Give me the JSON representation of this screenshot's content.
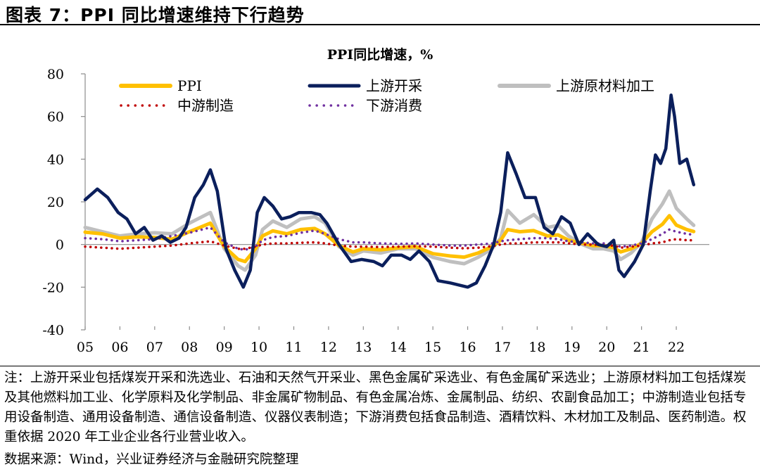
{
  "figure": {
    "title": "图表 7：PPI 同比增速维持下行趋势",
    "note": "注：上游开采业包括煤炭开采和洗选业、石油和天然气开采业、黑色金属矿采选业、有色金属矿采选业；上游原材料加工包括煤炭及其他燃料加工业、化学原料及化学制品、非金属矿物制品、有色金属冶炼、金属制品、纺织、农副食品加工；中游制造业包括专用设备制造、通用设备制造、通信设备制造、仪器仪表制造；下游消费包括食品制造、酒精饮料、木材加工及制品、医药制造。权重依据 2020 年工业企业各行业营业收入。",
    "source": "数据来源：Wind，兴业证券经济与金融研究院整理"
  },
  "chart_data": {
    "type": "line",
    "title": "PPI同比增速，%",
    "xlabel": "",
    "ylabel": "",
    "ylim": [
      -40,
      80
    ],
    "yticks": [
      "80",
      "60",
      "40",
      "20",
      "0",
      "-20",
      "-40"
    ],
    "xlim": [
      2005.0,
      2022.95
    ],
    "xtick_labels": [
      "05",
      "06",
      "07",
      "08",
      "09",
      "10",
      "11",
      "12",
      "13",
      "14",
      "15",
      "16",
      "17",
      "18",
      "19",
      "20",
      "21",
      "22"
    ],
    "legend_position": "top",
    "series": [
      {
        "name": "PPI",
        "color": "#FFC000",
        "style": "solid",
        "points": [
          [
            2005.0,
            5.8
          ],
          [
            2005.5,
            5.0
          ],
          [
            2006.0,
            3.0
          ],
          [
            2006.5,
            3.6
          ],
          [
            2007.0,
            3.3
          ],
          [
            2007.5,
            2.5
          ],
          [
            2008.0,
            6.0
          ],
          [
            2008.6,
            10.0
          ],
          [
            2009.0,
            -1.0
          ],
          [
            2009.4,
            -7.0
          ],
          [
            2009.6,
            -8.0
          ],
          [
            2009.9,
            -2.0
          ],
          [
            2010.1,
            4.0
          ],
          [
            2010.4,
            6.4
          ],
          [
            2010.8,
            5.0
          ],
          [
            2011.2,
            7.0
          ],
          [
            2011.6,
            7.5
          ],
          [
            2011.9,
            5.0
          ],
          [
            2012.3,
            -0.5
          ],
          [
            2012.7,
            -3.5
          ],
          [
            2013.0,
            -2.0
          ],
          [
            2013.5,
            -2.5
          ],
          [
            2014.0,
            -1.6
          ],
          [
            2014.5,
            -1.0
          ],
          [
            2015.0,
            -4.3
          ],
          [
            2015.5,
            -5.4
          ],
          [
            2015.9,
            -5.9
          ],
          [
            2016.3,
            -4.0
          ],
          [
            2016.7,
            -1.0
          ],
          [
            2016.95,
            2.0
          ],
          [
            2017.15,
            7.0
          ],
          [
            2017.5,
            6.0
          ],
          [
            2017.9,
            6.5
          ],
          [
            2018.3,
            4.0
          ],
          [
            2018.6,
            4.5
          ],
          [
            2018.9,
            2.0
          ],
          [
            2019.3,
            0.5
          ],
          [
            2019.6,
            -0.5
          ],
          [
            2019.9,
            -0.5
          ],
          [
            2020.2,
            -1.5
          ],
          [
            2020.4,
            -3.5
          ],
          [
            2020.7,
            -2.0
          ],
          [
            2021.0,
            0.5
          ],
          [
            2021.3,
            6.0
          ],
          [
            2021.6,
            9.5
          ],
          [
            2021.8,
            13.5
          ],
          [
            2022.0,
            9.1
          ],
          [
            2022.3,
            7.0
          ],
          [
            2022.5,
            6.1
          ]
        ]
      },
      {
        "name": "上游开采",
        "color": "#0B1F5C",
        "style": "solid",
        "points": [
          [
            2005.0,
            21.0
          ],
          [
            2005.35,
            26.0
          ],
          [
            2005.65,
            22.0
          ],
          [
            2005.95,
            15.0
          ],
          [
            2006.2,
            12.0
          ],
          [
            2006.45,
            5.0
          ],
          [
            2006.7,
            8.0
          ],
          [
            2006.95,
            2.0
          ],
          [
            2007.2,
            4.0
          ],
          [
            2007.45,
            1.0
          ],
          [
            2007.7,
            3.0
          ],
          [
            2007.9,
            8.0
          ],
          [
            2008.15,
            22.0
          ],
          [
            2008.4,
            28.0
          ],
          [
            2008.6,
            35.0
          ],
          [
            2008.8,
            25.0
          ],
          [
            2009.05,
            -2.0
          ],
          [
            2009.3,
            -12.0
          ],
          [
            2009.55,
            -20.0
          ],
          [
            2009.75,
            -12.0
          ],
          [
            2009.95,
            15.0
          ],
          [
            2010.15,
            22.0
          ],
          [
            2010.4,
            18.0
          ],
          [
            2010.65,
            12.0
          ],
          [
            2010.9,
            13.0
          ],
          [
            2011.15,
            15.0
          ],
          [
            2011.5,
            15.0
          ],
          [
            2011.75,
            14.0
          ],
          [
            2011.95,
            10.0
          ],
          [
            2012.3,
            0.0
          ],
          [
            2012.65,
            -8.0
          ],
          [
            2012.95,
            -7.0
          ],
          [
            2013.3,
            -8.0
          ],
          [
            2013.55,
            -10.0
          ],
          [
            2013.8,
            -5.0
          ],
          [
            2014.1,
            -5.0
          ],
          [
            2014.35,
            -7.0
          ],
          [
            2014.6,
            -3.0
          ],
          [
            2014.9,
            -8.0
          ],
          [
            2015.15,
            -17.0
          ],
          [
            2015.5,
            -18.0
          ],
          [
            2015.75,
            -19.0
          ],
          [
            2016.0,
            -20.0
          ],
          [
            2016.25,
            -18.0
          ],
          [
            2016.5,
            -10.0
          ],
          [
            2016.75,
            0.0
          ],
          [
            2016.95,
            15.0
          ],
          [
            2017.15,
            43.0
          ],
          [
            2017.4,
            33.0
          ],
          [
            2017.65,
            22.0
          ],
          [
            2017.95,
            22.0
          ],
          [
            2018.2,
            8.0
          ],
          [
            2018.45,
            5.0
          ],
          [
            2018.7,
            13.0
          ],
          [
            2018.95,
            10.0
          ],
          [
            2019.2,
            0.0
          ],
          [
            2019.45,
            5.0
          ],
          [
            2019.75,
            0.0
          ],
          [
            2020.0,
            -1.0
          ],
          [
            2020.2,
            2.0
          ],
          [
            2020.35,
            -12.0
          ],
          [
            2020.5,
            -15.0
          ],
          [
            2020.8,
            -8.0
          ],
          [
            2021.05,
            0.0
          ],
          [
            2021.25,
            25.0
          ],
          [
            2021.4,
            42.0
          ],
          [
            2021.55,
            38.0
          ],
          [
            2021.7,
            45.0
          ],
          [
            2021.85,
            70.0
          ],
          [
            2021.95,
            60.0
          ],
          [
            2022.1,
            38.0
          ],
          [
            2022.3,
            40.0
          ],
          [
            2022.5,
            28.0
          ]
        ]
      },
      {
        "name": "上游原材料加工",
        "color": "#BFBFBF",
        "style": "solid",
        "points": [
          [
            2005.0,
            8.0
          ],
          [
            2005.5,
            6.0
          ],
          [
            2006.0,
            4.0
          ],
          [
            2006.5,
            5.0
          ],
          [
            2007.0,
            5.5
          ],
          [
            2007.5,
            5.0
          ],
          [
            2008.0,
            10.0
          ],
          [
            2008.6,
            15.0
          ],
          [
            2009.0,
            -2.0
          ],
          [
            2009.4,
            -10.0
          ],
          [
            2009.6,
            -12.0
          ],
          [
            2009.9,
            -5.0
          ],
          [
            2010.1,
            7.0
          ],
          [
            2010.4,
            11.0
          ],
          [
            2010.8,
            8.0
          ],
          [
            2011.2,
            12.0
          ],
          [
            2011.6,
            13.0
          ],
          [
            2011.9,
            10.0
          ],
          [
            2012.3,
            -1.0
          ],
          [
            2012.7,
            -5.0
          ],
          [
            2013.0,
            -3.0
          ],
          [
            2013.5,
            -4.0
          ],
          [
            2014.0,
            -2.0
          ],
          [
            2014.5,
            -2.0
          ],
          [
            2015.0,
            -6.0
          ],
          [
            2015.5,
            -8.0
          ],
          [
            2015.9,
            -9.0
          ],
          [
            2016.3,
            -6.0
          ],
          [
            2016.7,
            -2.0
          ],
          [
            2016.95,
            3.0
          ],
          [
            2017.15,
            16.0
          ],
          [
            2017.5,
            10.0
          ],
          [
            2017.9,
            14.0
          ],
          [
            2018.3,
            8.0
          ],
          [
            2018.6,
            9.0
          ],
          [
            2018.9,
            4.0
          ],
          [
            2019.3,
            0.0
          ],
          [
            2019.6,
            -2.0
          ],
          [
            2019.9,
            -2.0
          ],
          [
            2020.2,
            -3.0
          ],
          [
            2020.4,
            -7.0
          ],
          [
            2020.7,
            -4.0
          ],
          [
            2021.0,
            1.0
          ],
          [
            2021.3,
            12.0
          ],
          [
            2021.6,
            19.0
          ],
          [
            2021.8,
            25.0
          ],
          [
            2022.0,
            17.0
          ],
          [
            2022.3,
            12.0
          ],
          [
            2022.5,
            9.0
          ]
        ]
      },
      {
        "name": "中游制造",
        "color": "#C00000",
        "style": "dotted",
        "points": [
          [
            2005.0,
            -1.0
          ],
          [
            2005.5,
            -1.5
          ],
          [
            2006.0,
            -2.0
          ],
          [
            2006.5,
            -1.5
          ],
          [
            2007.0,
            -1.0
          ],
          [
            2007.5,
            -0.5
          ],
          [
            2008.0,
            0.5
          ],
          [
            2008.6,
            1.5
          ],
          [
            2009.0,
            -0.5
          ],
          [
            2009.4,
            -2.0
          ],
          [
            2009.6,
            -2.0
          ],
          [
            2009.9,
            -1.0
          ],
          [
            2010.1,
            0.0
          ],
          [
            2010.4,
            0.5
          ],
          [
            2010.8,
            0.5
          ],
          [
            2011.2,
            0.8
          ],
          [
            2011.6,
            1.0
          ],
          [
            2011.9,
            0.5
          ],
          [
            2012.3,
            -0.5
          ],
          [
            2012.7,
            -1.0
          ],
          [
            2013.0,
            -1.0
          ],
          [
            2013.5,
            -1.2
          ],
          [
            2014.0,
            -1.0
          ],
          [
            2014.5,
            -0.8
          ],
          [
            2015.0,
            -1.0
          ],
          [
            2015.5,
            -1.5
          ],
          [
            2015.9,
            -1.8
          ],
          [
            2016.3,
            -1.5
          ],
          [
            2016.7,
            -0.8
          ],
          [
            2016.95,
            0.0
          ],
          [
            2017.15,
            0.5
          ],
          [
            2017.5,
            0.5
          ],
          [
            2017.9,
            1.0
          ],
          [
            2018.3,
            1.0
          ],
          [
            2018.6,
            1.0
          ],
          [
            2018.9,
            0.5
          ],
          [
            2019.3,
            0.0
          ],
          [
            2019.6,
            0.0
          ],
          [
            2019.9,
            -0.5
          ],
          [
            2020.2,
            -0.5
          ],
          [
            2020.4,
            -1.5
          ],
          [
            2020.7,
            -1.0
          ],
          [
            2021.0,
            -0.5
          ],
          [
            2021.3,
            0.5
          ],
          [
            2021.6,
            1.0
          ],
          [
            2021.8,
            2.0
          ],
          [
            2022.0,
            2.5
          ],
          [
            2022.3,
            2.0
          ],
          [
            2022.5,
            2.0
          ]
        ]
      },
      {
        "name": "下游消费",
        "color": "#7030A0",
        "style": "dotted",
        "points": [
          [
            2005.0,
            3.0
          ],
          [
            2005.5,
            2.5
          ],
          [
            2006.0,
            1.5
          ],
          [
            2006.5,
            2.0
          ],
          [
            2007.0,
            2.5
          ],
          [
            2007.5,
            4.0
          ],
          [
            2008.0,
            5.5
          ],
          [
            2008.6,
            8.0
          ],
          [
            2009.0,
            1.0
          ],
          [
            2009.4,
            -2.0
          ],
          [
            2009.6,
            -2.5
          ],
          [
            2009.9,
            -1.0
          ],
          [
            2010.1,
            2.0
          ],
          [
            2010.4,
            3.5
          ],
          [
            2010.8,
            4.0
          ],
          [
            2011.2,
            5.5
          ],
          [
            2011.6,
            6.5
          ],
          [
            2011.9,
            5.0
          ],
          [
            2012.3,
            2.5
          ],
          [
            2012.7,
            1.0
          ],
          [
            2013.0,
            1.0
          ],
          [
            2013.5,
            0.5
          ],
          [
            2014.0,
            0.3
          ],
          [
            2014.5,
            0.5
          ],
          [
            2015.0,
            0.0
          ],
          [
            2015.5,
            -0.5
          ],
          [
            2015.9,
            -0.5
          ],
          [
            2016.3,
            0.0
          ],
          [
            2016.7,
            0.5
          ],
          [
            2016.95,
            1.5
          ],
          [
            2017.15,
            2.0
          ],
          [
            2017.5,
            2.5
          ],
          [
            2017.9,
            3.0
          ],
          [
            2018.3,
            3.0
          ],
          [
            2018.6,
            2.5
          ],
          [
            2018.9,
            1.5
          ],
          [
            2019.3,
            1.0
          ],
          [
            2019.6,
            0.5
          ],
          [
            2019.9,
            0.5
          ],
          [
            2020.2,
            0.0
          ],
          [
            2020.4,
            -1.0
          ],
          [
            2020.7,
            -0.5
          ],
          [
            2021.0,
            0.5
          ],
          [
            2021.3,
            2.5
          ],
          [
            2021.6,
            5.0
          ],
          [
            2021.8,
            7.0
          ],
          [
            2022.0,
            6.0
          ],
          [
            2022.3,
            5.0
          ],
          [
            2022.5,
            4.5
          ]
        ]
      }
    ]
  }
}
